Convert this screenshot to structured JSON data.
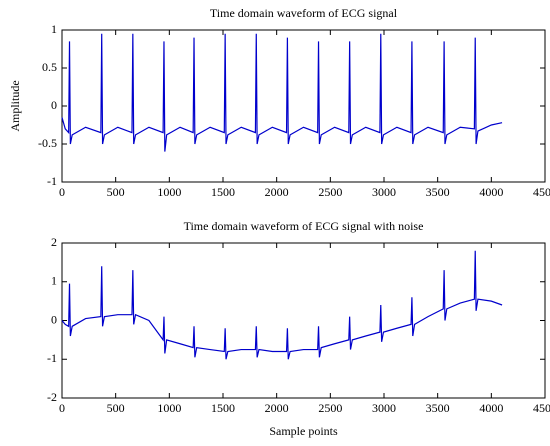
{
  "chart_data": [
    {
      "type": "line",
      "title": "Time domain waveform of ECG signal",
      "ylabel": "Amplitude",
      "xlim": [
        0,
        4500
      ],
      "xticks": [
        0,
        500,
        1000,
        1500,
        2000,
        2500,
        3000,
        3500,
        4000,
        4500
      ],
      "ylim": [
        -1,
        1
      ],
      "yticks": [
        -1,
        -0.5,
        0,
        0.5,
        1
      ],
      "series": [
        {
          "color": "#0000cc",
          "x": [
            0,
            30,
            62,
            70,
            78,
            95,
            220,
            362,
            370,
            378,
            395,
            520,
            652,
            660,
            668,
            685,
            810,
            942,
            950,
            958,
            975,
            1100,
            1222,
            1230,
            1238,
            1255,
            1380,
            1512,
            1520,
            1528,
            1545,
            1670,
            1802,
            1810,
            1818,
            1835,
            1960,
            2092,
            2100,
            2108,
            2125,
            2250,
            2382,
            2390,
            2398,
            2415,
            2540,
            2672,
            2680,
            2688,
            2705,
            2830,
            2962,
            2970,
            2978,
            2995,
            3120,
            3252,
            3260,
            3268,
            3285,
            3410,
            3552,
            3560,
            3568,
            3585,
            3710,
            3842,
            3850,
            3858,
            3875,
            4000,
            4100
          ],
          "values": [
            -0.15,
            -0.3,
            -0.35,
            0.85,
            -0.5,
            -0.38,
            -0.28,
            -0.35,
            0.95,
            -0.5,
            -0.38,
            -0.28,
            -0.35,
            0.95,
            -0.5,
            -0.38,
            -0.28,
            -0.35,
            0.85,
            -0.6,
            -0.38,
            -0.28,
            -0.35,
            0.9,
            -0.5,
            -0.38,
            -0.28,
            -0.35,
            0.95,
            -0.5,
            -0.38,
            -0.28,
            -0.35,
            0.95,
            -0.5,
            -0.38,
            -0.28,
            -0.35,
            0.9,
            -0.5,
            -0.38,
            -0.28,
            -0.35,
            0.85,
            -0.5,
            -0.38,
            -0.28,
            -0.35,
            0.85,
            -0.5,
            -0.38,
            -0.28,
            -0.35,
            0.95,
            -0.5,
            -0.38,
            -0.28,
            -0.35,
            0.85,
            -0.5,
            -0.38,
            -0.28,
            -0.35,
            0.85,
            -0.5,
            -0.38,
            -0.28,
            -0.3,
            0.9,
            -0.5,
            -0.33,
            -0.25,
            -0.22
          ]
        }
      ]
    },
    {
      "type": "line",
      "title": "Time domain waveform of ECG signal with noise",
      "xlabel": "Sample points",
      "xlim": [
        0,
        4500
      ],
      "xticks": [
        0,
        500,
        1000,
        1500,
        2000,
        2500,
        3000,
        3500,
        4000,
        4500
      ],
      "ylim": [
        -2,
        2
      ],
      "yticks": [
        -2,
        -1,
        0,
        1,
        2
      ],
      "series": [
        {
          "color": "#0000cc",
          "x": [
            0,
            30,
            62,
            70,
            78,
            95,
            220,
            362,
            370,
            378,
            395,
            520,
            652,
            660,
            668,
            685,
            810,
            942,
            950,
            958,
            975,
            1100,
            1222,
            1230,
            1238,
            1255,
            1380,
            1512,
            1520,
            1528,
            1545,
            1670,
            1802,
            1810,
            1818,
            1835,
            1960,
            2092,
            2100,
            2108,
            2125,
            2250,
            2382,
            2390,
            2398,
            2415,
            2540,
            2672,
            2680,
            2688,
            2705,
            2830,
            2962,
            2970,
            2978,
            2995,
            3120,
            3252,
            3260,
            3268,
            3285,
            3410,
            3552,
            3560,
            3568,
            3585,
            3710,
            3842,
            3850,
            3858,
            3875,
            4000,
            4100
          ],
          "values": [
            0,
            -0.1,
            -0.15,
            0.95,
            -0.4,
            -0.15,
            0.05,
            0.1,
            1.4,
            -0.15,
            0.1,
            0.15,
            0.15,
            1.3,
            -0.1,
            0.15,
            0,
            -0.5,
            0.1,
            -0.85,
            -0.5,
            -0.6,
            -0.7,
            -0.15,
            -0.95,
            -0.7,
            -0.75,
            -0.8,
            -0.2,
            -1,
            -0.8,
            -0.75,
            -0.75,
            -0.15,
            -0.95,
            -0.75,
            -0.8,
            -0.8,
            -0.2,
            -1,
            -0.8,
            -0.75,
            -0.75,
            -0.15,
            -0.95,
            -0.7,
            -0.6,
            -0.5,
            0.1,
            -0.75,
            -0.5,
            -0.4,
            -0.3,
            0.4,
            -0.55,
            -0.3,
            -0.2,
            -0.1,
            0.6,
            -0.4,
            -0.1,
            0.1,
            0.3,
            1.3,
            0,
            0.3,
            0.45,
            0.55,
            1.8,
            0.25,
            0.55,
            0.5,
            0.4
          ]
        }
      ]
    }
  ]
}
